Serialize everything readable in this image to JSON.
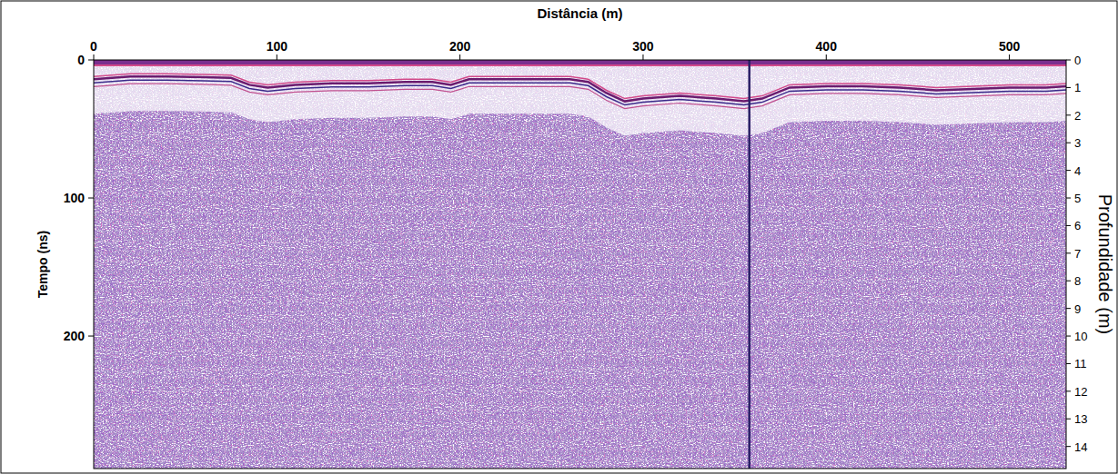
{
  "chart_data": {
    "type": "radargram",
    "x_label": "Distância (m)",
    "y_label": "Tempo (ns)",
    "y2_label": "Profundidade (m)",
    "xlim": [
      0,
      531
    ],
    "xticks": [
      0,
      100,
      200,
      300,
      400,
      500
    ],
    "ylim": [
      0,
      296
    ],
    "yticks": [
      0,
      100,
      200
    ],
    "y2lim": [
      0,
      14.8
    ],
    "y2ticks": [
      0,
      1,
      2,
      3,
      4,
      5,
      6,
      7,
      8,
      9,
      10,
      11,
      12,
      13,
      14
    ],
    "x": [
      0,
      10,
      20,
      40,
      60,
      75,
      85,
      95,
      110,
      130,
      150,
      170,
      185,
      195,
      205,
      220,
      240,
      260,
      270,
      280,
      290,
      300,
      320,
      340,
      355,
      365,
      380,
      400,
      420,
      440,
      460,
      480,
      500,
      520,
      531
    ],
    "values": [
      14,
      13,
      12,
      12,
      12.4,
      13,
      18,
      20,
      18,
      17,
      17,
      16,
      16,
      18,
      14,
      14,
      14,
      14,
      16,
      24,
      30,
      28,
      26,
      28,
      30,
      28,
      20,
      19,
      19,
      20,
      22,
      21,
      20,
      20,
      19
    ],
    "color": "#6a1b6e",
    "vertical_traces": [
      358
    ],
    "grid": false
  }
}
